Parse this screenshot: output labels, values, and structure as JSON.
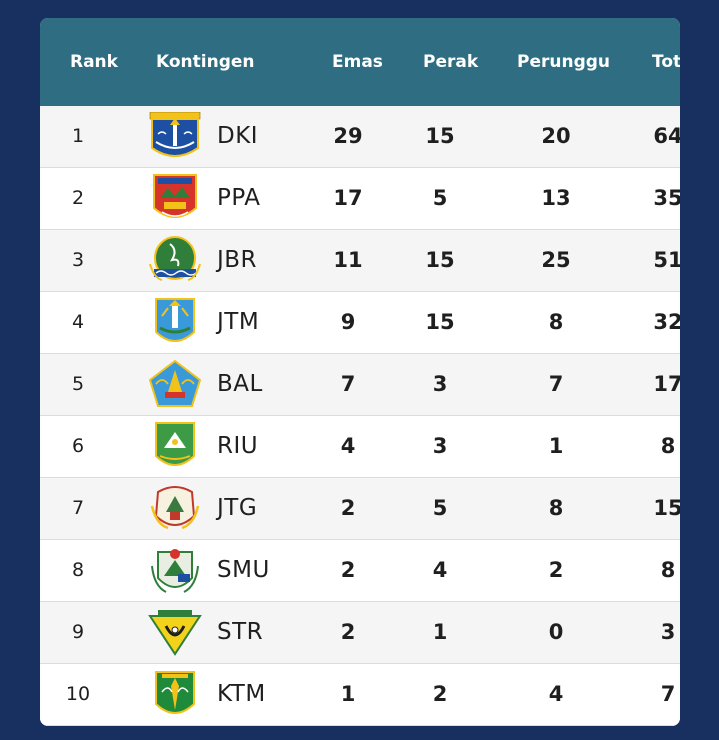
{
  "headers": {
    "rank": "Rank",
    "kontingen": "Kontingen",
    "emas": "Emas",
    "perak": "Perak",
    "perunggu": "Perunggu",
    "total": "Total"
  },
  "rows": [
    {
      "rank": "1",
      "code": "DKI",
      "emas": "29",
      "perak": "15",
      "perunggu": "20",
      "total": "64",
      "logo_icon": "dki-emblem-icon"
    },
    {
      "rank": "2",
      "code": "PPA",
      "emas": "17",
      "perak": "5",
      "perunggu": "13",
      "total": "35",
      "logo_icon": "ppa-emblem-icon"
    },
    {
      "rank": "3",
      "code": "JBR",
      "emas": "11",
      "perak": "15",
      "perunggu": "25",
      "total": "51",
      "logo_icon": "jbr-emblem-icon"
    },
    {
      "rank": "4",
      "code": "JTM",
      "emas": "9",
      "perak": "15",
      "perunggu": "8",
      "total": "32",
      "logo_icon": "jtm-emblem-icon"
    },
    {
      "rank": "5",
      "code": "BAL",
      "emas": "7",
      "perak": "3",
      "perunggu": "7",
      "total": "17",
      "logo_icon": "bal-emblem-icon"
    },
    {
      "rank": "6",
      "code": "RIU",
      "emas": "4",
      "perak": "3",
      "perunggu": "1",
      "total": "8",
      "logo_icon": "riu-emblem-icon"
    },
    {
      "rank": "7",
      "code": "JTG",
      "emas": "2",
      "perak": "5",
      "perunggu": "8",
      "total": "15",
      "logo_icon": "jtg-emblem-icon"
    },
    {
      "rank": "8",
      "code": "SMU",
      "emas": "2",
      "perak": "4",
      "perunggu": "2",
      "total": "8",
      "logo_icon": "smu-emblem-icon"
    },
    {
      "rank": "9",
      "code": "STR",
      "emas": "2",
      "perak": "1",
      "perunggu": "0",
      "total": "3",
      "logo_icon": "str-emblem-icon"
    },
    {
      "rank": "10",
      "code": "KTM",
      "emas": "1",
      "perak": "2",
      "perunggu": "4",
      "total": "7",
      "logo_icon": "ktm-emblem-icon"
    }
  ],
  "colors": {
    "page_background": "#17305f",
    "header_background": "#2e6d82",
    "row_alt_background": "#f5f5f5"
  }
}
